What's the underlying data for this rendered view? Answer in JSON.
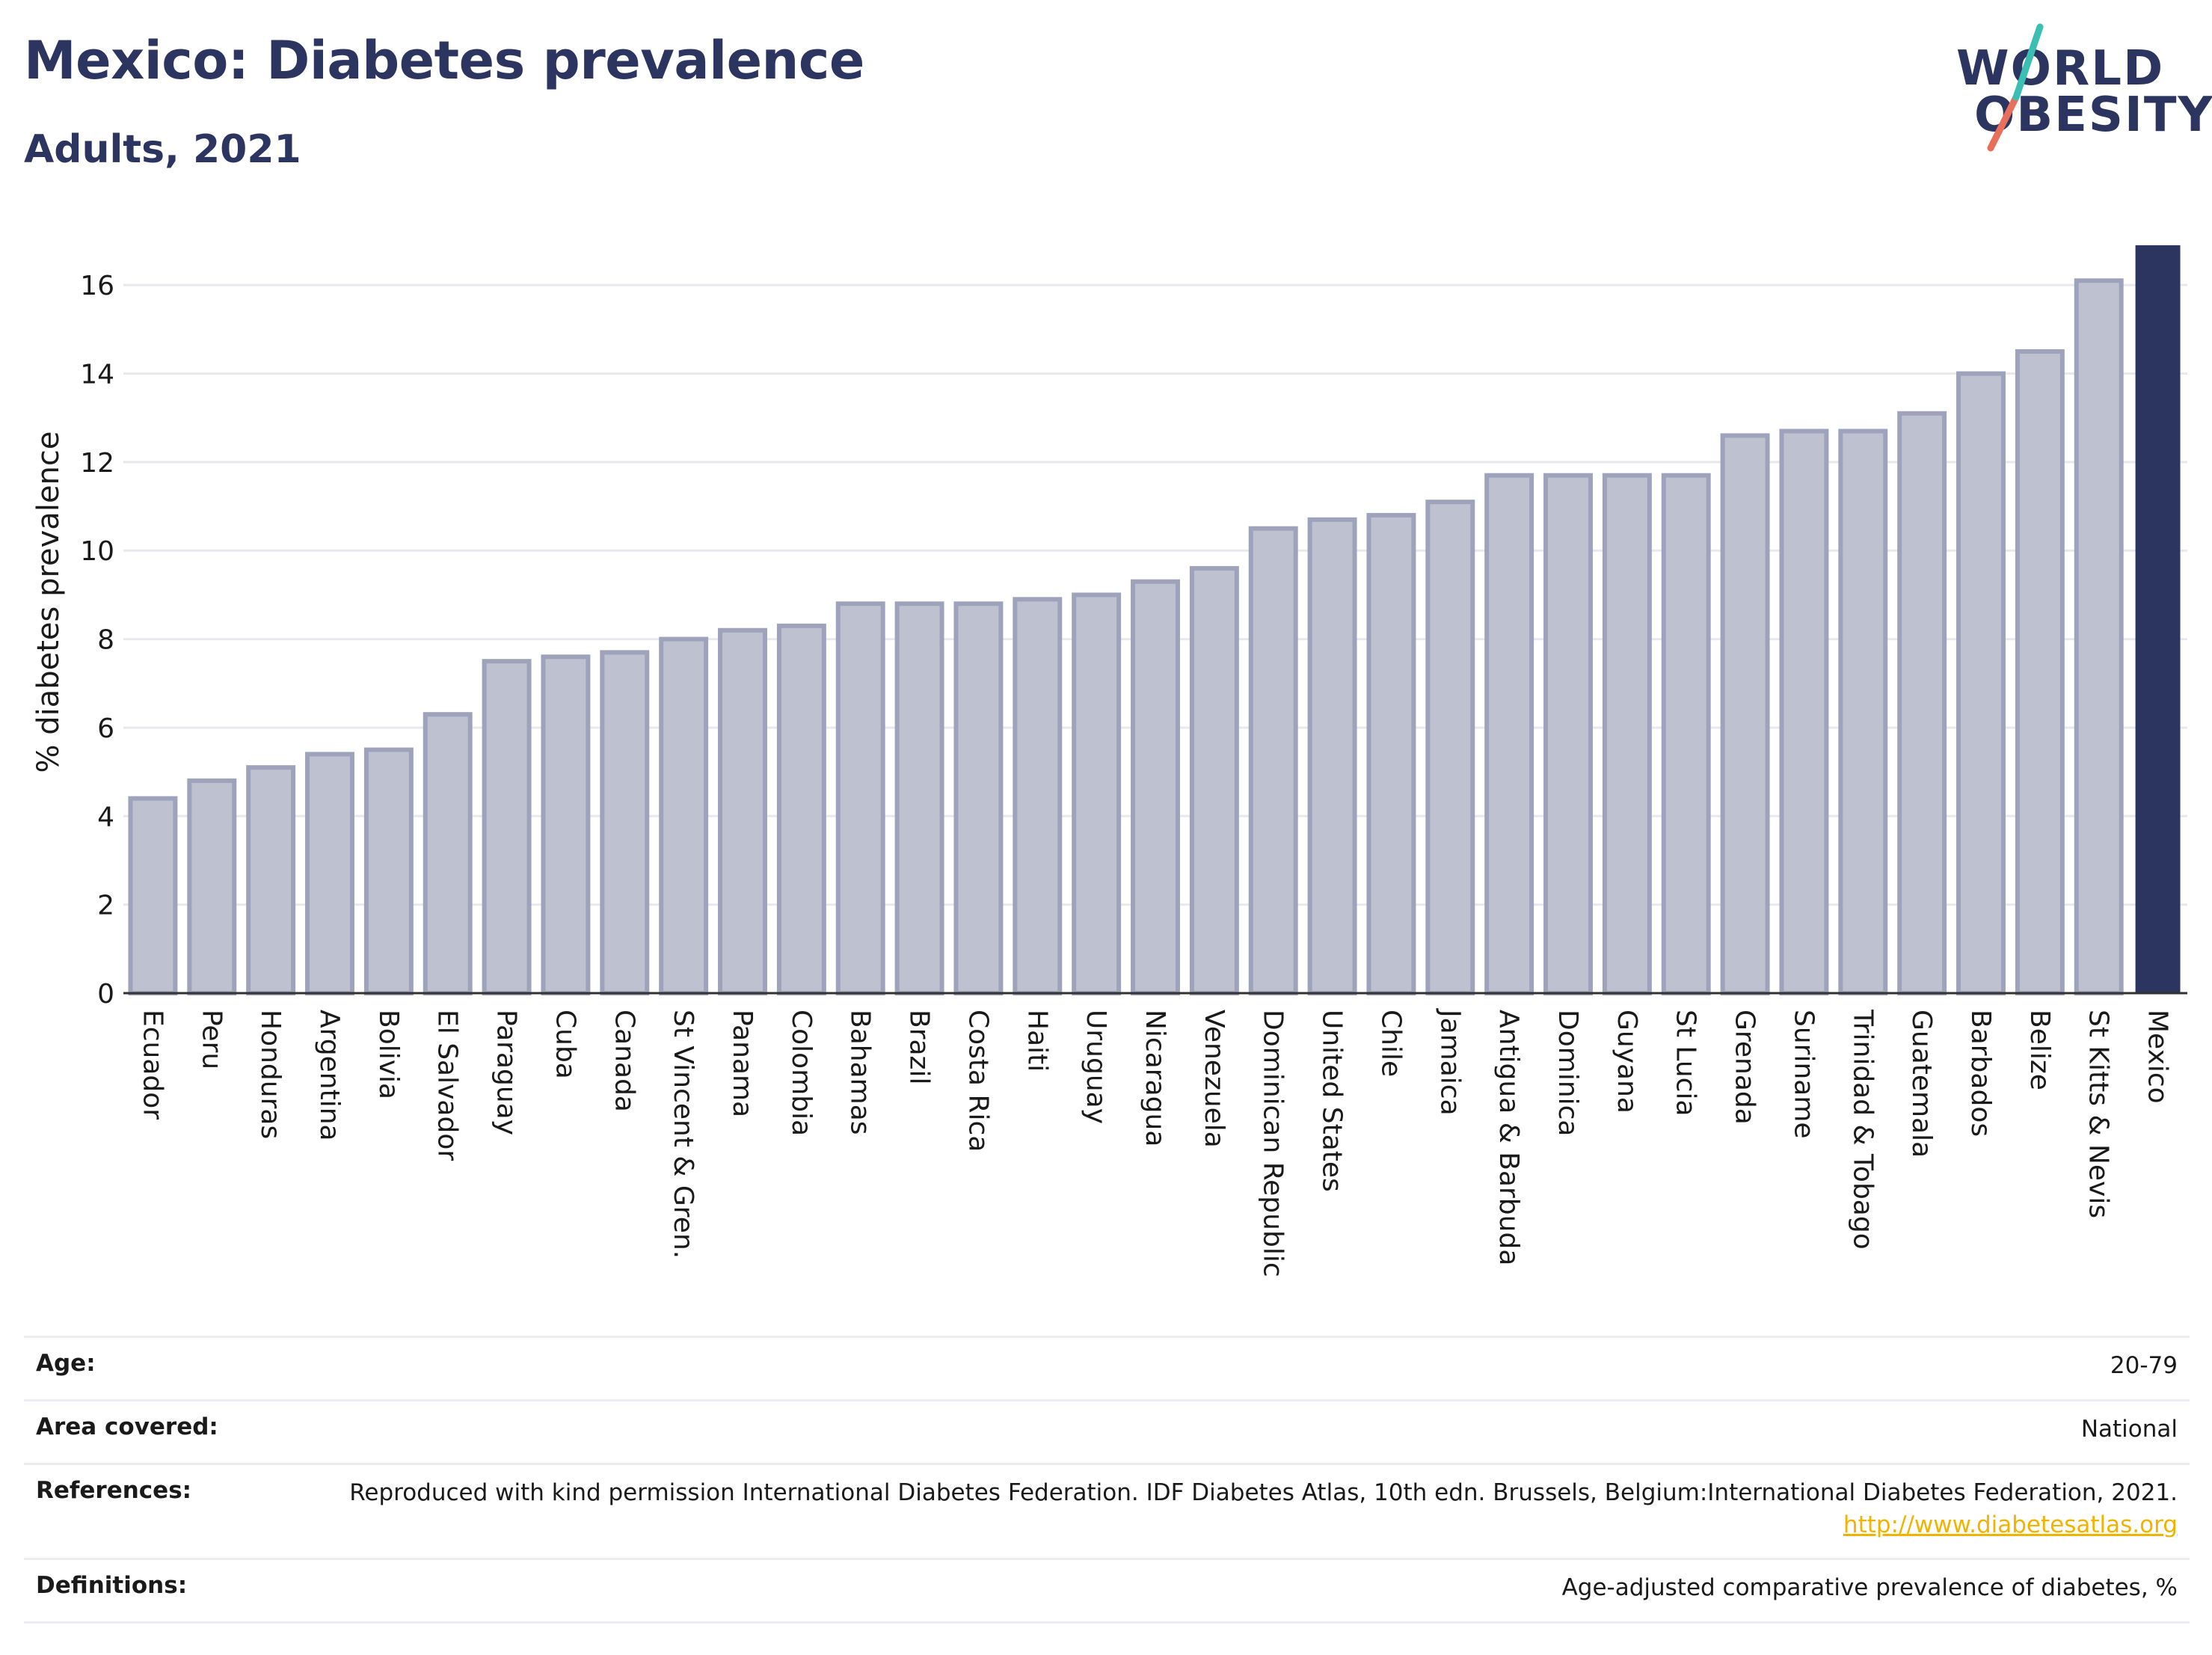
{
  "header": {
    "title": "Mexico: Diabetes prevalence",
    "subtitle": "Adults, 2021"
  },
  "logo": {
    "line1": "WORLD",
    "line2": "OBESITY",
    "colors": {
      "text": "#2c3560",
      "slash_top": "#3bbfb3",
      "slash_bottom": "#e8705a"
    }
  },
  "colors": {
    "bar_default": "#bec1cf",
    "bar_default_stroke": "#9ea3bb",
    "bar_highlight": "#2c3560",
    "grid": "#e8e8ee",
    "axis": "#333333"
  },
  "chart_data": {
    "type": "bar",
    "ylabel": "% diabetes prevalence",
    "ylim": [
      0,
      17
    ],
    "yticks": [
      0,
      2,
      4,
      6,
      8,
      10,
      12,
      14,
      16
    ],
    "grid": true,
    "highlight": "Mexico",
    "categories": [
      "Ecuador",
      "Peru",
      "Honduras",
      "Argentina",
      "Bolivia",
      "El Salvador",
      "Paraguay",
      "Cuba",
      "Canada",
      "St Vincent & Gren.",
      "Panama",
      "Colombia",
      "Bahamas",
      "Brazil",
      "Costa Rica",
      "Haiti",
      "Uruguay",
      "Nicaragua",
      "Venezuela",
      "Dominican Republic",
      "United States",
      "Chile",
      "Jamaica",
      "Antigua & Barbuda",
      "Dominica",
      "Guyana",
      "St Lucia",
      "Grenada",
      "Suriname",
      "Trinidad & Tobago",
      "Guatemala",
      "Barbados",
      "Belize",
      "St Kitts & Nevis",
      "Mexico"
    ],
    "values": [
      4.4,
      4.8,
      5.1,
      5.4,
      5.5,
      6.3,
      7.5,
      7.6,
      7.7,
      8.0,
      8.2,
      8.3,
      8.8,
      8.8,
      8.8,
      8.9,
      9.0,
      9.3,
      9.6,
      10.5,
      10.7,
      10.8,
      11.1,
      11.7,
      11.7,
      11.7,
      11.7,
      12.6,
      12.7,
      12.7,
      13.1,
      14.0,
      14.5,
      16.1,
      16.9
    ]
  },
  "info": {
    "age_label": "Age:",
    "age_value": "20-79",
    "area_label": "Area covered:",
    "area_value": "National",
    "references_label": "References:",
    "references_text": "Reproduced with kind permission International Diabetes Federation.  IDF Diabetes Atlas, 10th edn. Brussels, Belgium:International Diabetes Federation, 2021.",
    "references_link": "http://www.diabetesatlas.org",
    "definitions_label": "Definitions:",
    "definitions_value": "Age-adjusted comparative prevalence of diabetes, %"
  }
}
